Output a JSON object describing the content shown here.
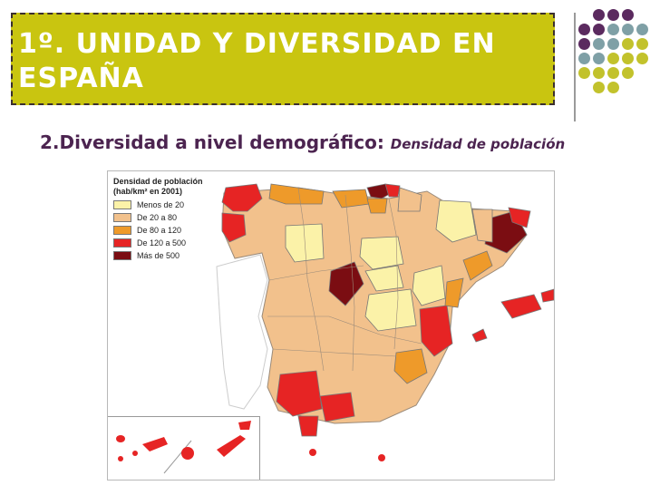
{
  "slide": {
    "title": "1º. UNIDAD Y DIVERSIDAD EN ESPAÑA",
    "subtitle_main": "2.Diversidad a nivel demográfico:",
    "subtitle_emphasis": "Densidad de población"
  },
  "legend": {
    "title_line1": "Densidad de población",
    "title_line2": "(hab/km² en 2001)",
    "items": [
      {
        "label": "Menos de 20",
        "color": "#fbf2a8"
      },
      {
        "label": "De 20 a 80",
        "color": "#f2c18c"
      },
      {
        "label": "De 80 a 120",
        "color": "#ee9a2a"
      },
      {
        "label": "De 120 a 500",
        "color": "#e62424"
      },
      {
        "label": "Más de 500",
        "color": "#7b0d12"
      }
    ]
  },
  "colors": {
    "title_bg": "#c9c510",
    "subtitle": "#4c2450",
    "dot_purple": "#5b2a5f",
    "dot_teal": "#7fa0a6",
    "dot_olive": "#c2c22c"
  }
}
